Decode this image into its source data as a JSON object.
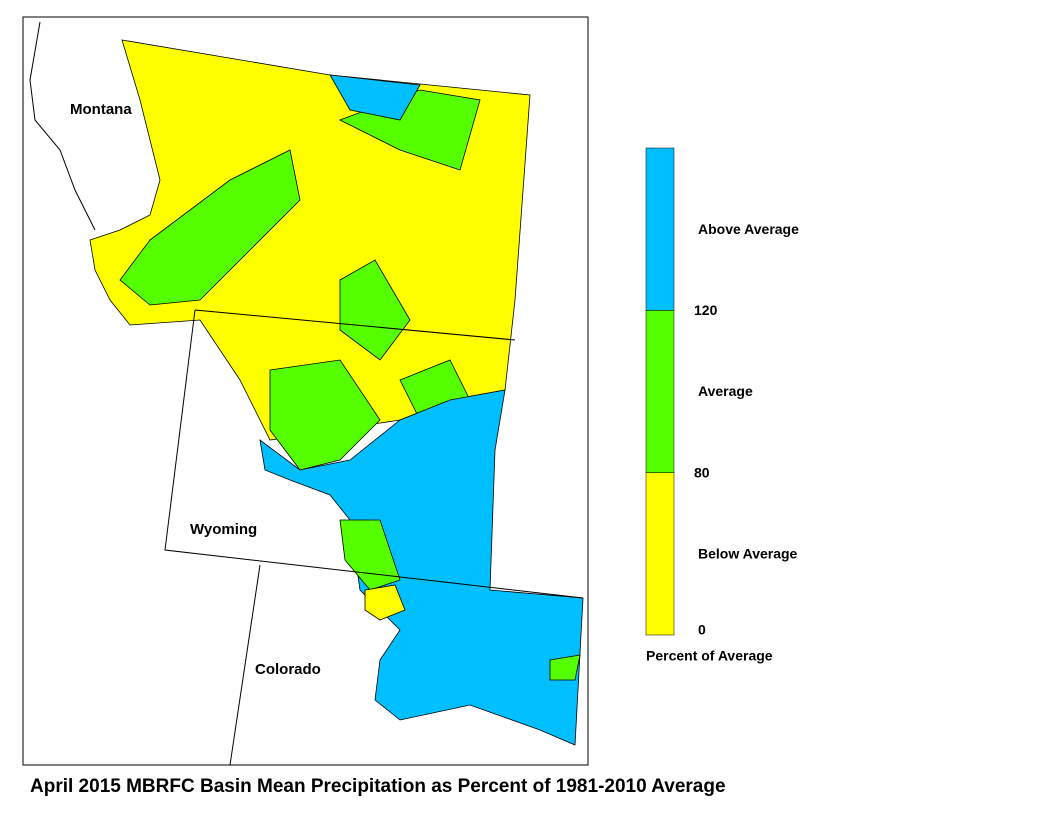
{
  "map": {
    "title": "April 2015 MBRFC Basin Mean Precipitation as Percent of 1981-2010 Average",
    "state_labels": [
      "Montana",
      "Wyoming",
      "Colorado"
    ]
  },
  "legend": {
    "title": "Percent of Average",
    "ticks": [
      0,
      80,
      120
    ],
    "classes": [
      {
        "label": "Below Average",
        "color": "#ffff00"
      },
      {
        "label": "Average",
        "color": "#55ff00"
      },
      {
        "label": "Above Average",
        "color": "#00bfff"
      }
    ]
  }
}
